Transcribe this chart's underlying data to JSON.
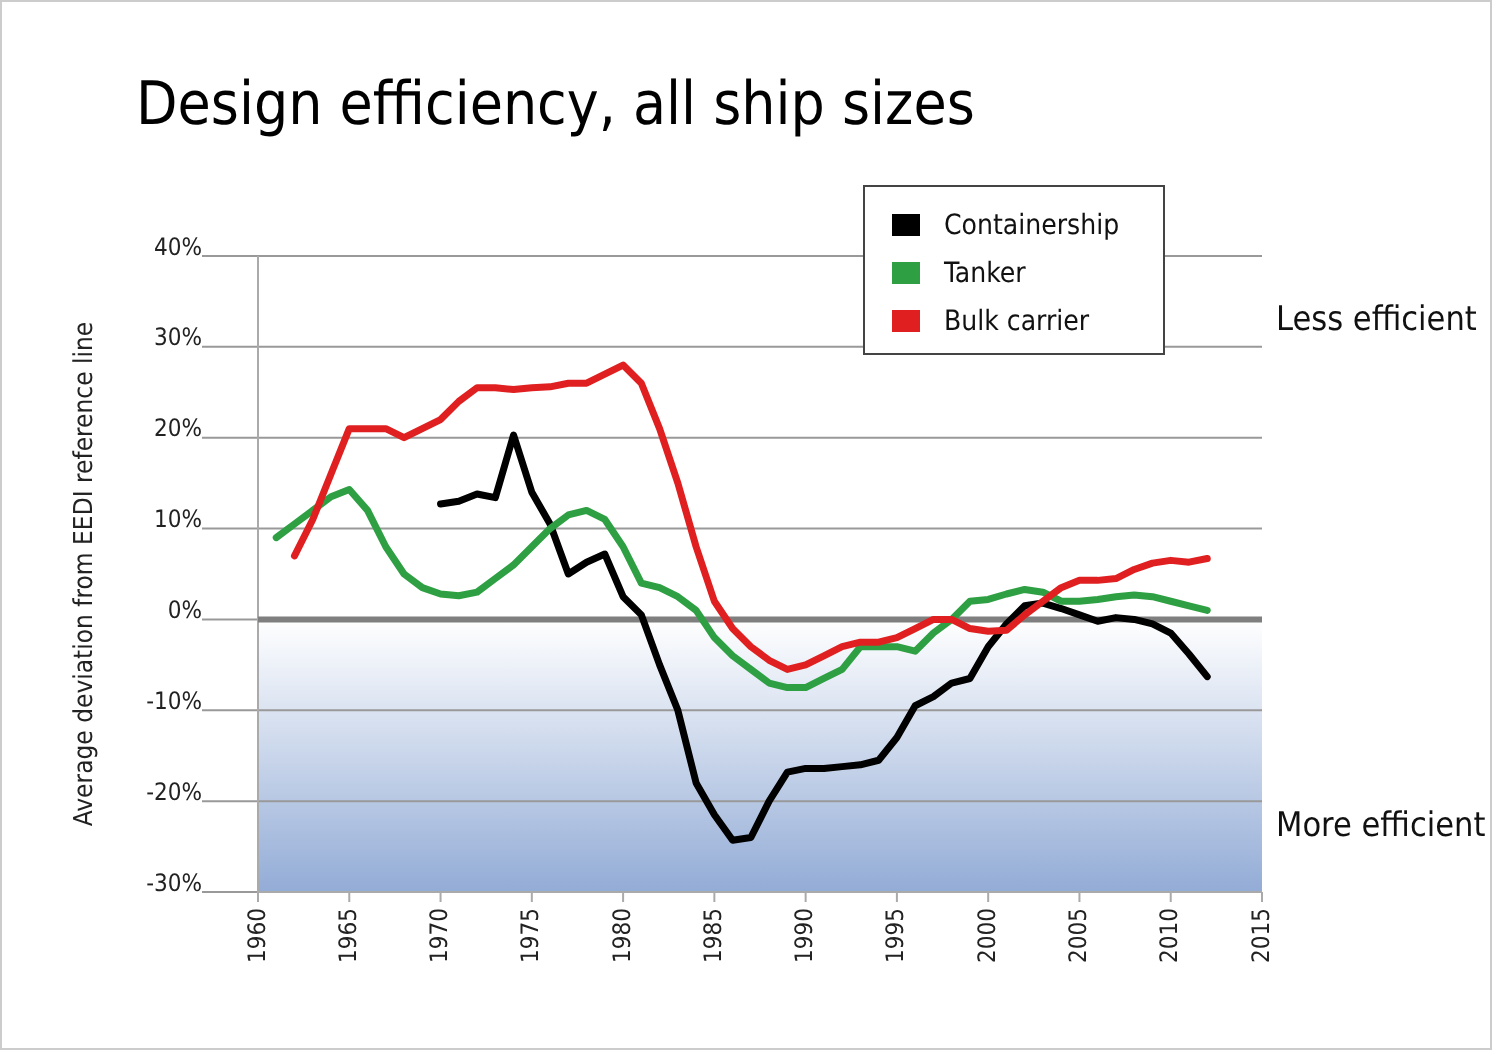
{
  "chart_data": {
    "type": "line",
    "title": "Design efficiency, all ship sizes",
    "ylabel": "Average deviation from EEDI reference line",
    "annotations": [
      "Less efficient",
      "More efficient"
    ],
    "xlim": [
      1960,
      2015
    ],
    "xticks": [
      1960,
      1965,
      1970,
      1975,
      1980,
      1985,
      1990,
      1995,
      2000,
      2005,
      2010,
      2015
    ],
    "ylim": [
      -30,
      40
    ],
    "yticks": [
      {
        "value": -30,
        "label": "-30%"
      },
      {
        "value": -20,
        "label": "-20%"
      },
      {
        "value": -10,
        "label": "-10%"
      },
      {
        "value": 0,
        "label": "0%"
      },
      {
        "value": 10,
        "label": "10%"
      },
      {
        "value": 20,
        "label": "20%"
      },
      {
        "value": 30,
        "label": "30%"
      },
      {
        "value": 40,
        "label": "40%"
      }
    ],
    "grid": "y",
    "legend": "top right",
    "ref_lines": [
      {
        "axis": "y",
        "value": 0,
        "color": "#7f7f7f"
      }
    ],
    "bands": [
      {
        "axis": "y",
        "from": -30,
        "to": 0,
        "color": "#93acd6"
      }
    ],
    "series": [
      {
        "name": "Containership",
        "color": "#000000",
        "x": [
          1970,
          1971,
          1972,
          1973,
          1974,
          1975,
          1976,
          1977,
          1978,
          1979,
          1980,
          1981,
          1982,
          1983,
          1984,
          1985,
          1986,
          1987,
          1988,
          1989,
          1990,
          1991,
          1992,
          1993,
          1994,
          1995,
          1996,
          1997,
          1998,
          1999,
          2000,
          2001,
          2002,
          2003,
          2004,
          2005,
          2006,
          2007,
          2008,
          2009,
          2010,
          2011,
          2012
        ],
        "values": [
          12.7,
          13,
          13.8,
          13.4,
          20.3,
          14,
          10.5,
          5,
          6.3,
          7.2,
          2.5,
          0.5,
          -5,
          -10,
          -18,
          -21.5,
          -24.3,
          -24,
          -20,
          -16.8,
          -16.4,
          -16.4,
          -16.2,
          -16,
          -15.5,
          -13,
          -9.5,
          -8.5,
          -7,
          -6.5,
          -3,
          -0.5,
          1.5,
          1.8,
          1.2,
          0.5,
          -0.2,
          0.2,
          0,
          -0.5,
          -1.5,
          -3.8,
          -6.3
        ]
      },
      {
        "name": "Tanker",
        "color": "#2ea043",
        "x": [
          1961,
          1962,
          1963,
          1964,
          1965,
          1966,
          1967,
          1968,
          1969,
          1970,
          1971,
          1972,
          1973,
          1974,
          1975,
          1976,
          1977,
          1978,
          1979,
          1980,
          1981,
          1982,
          1983,
          1984,
          1985,
          1986,
          1987,
          1988,
          1989,
          1990,
          1991,
          1992,
          1993,
          1994,
          1995,
          1996,
          1997,
          1998,
          1999,
          2000,
          2001,
          2002,
          2003,
          2004,
          2005,
          2006,
          2007,
          2008,
          2009,
          2010,
          2011,
          2012
        ],
        "values": [
          9,
          10.5,
          12,
          13.5,
          14.3,
          12,
          8,
          5,
          3.5,
          2.8,
          2.6,
          3,
          4.5,
          6,
          8,
          10,
          11.5,
          12,
          11,
          8,
          4,
          3.5,
          2.5,
          1,
          -2,
          -4,
          -5.5,
          -7,
          -7.5,
          -7.5,
          -6.5,
          -5.5,
          -3,
          -3,
          -3,
          -3.5,
          -1.5,
          0,
          2,
          2.2,
          2.8,
          3.3,
          3,
          2,
          2,
          2.2,
          2.5,
          2.7,
          2.5,
          2,
          1.5,
          1
        ]
      },
      {
        "name": "Bulk carrier",
        "color": "#e02020",
        "x": [
          1962,
          1963,
          1964,
          1965,
          1966,
          1967,
          1968,
          1969,
          1970,
          1971,
          1972,
          1973,
          1974,
          1975,
          1976,
          1977,
          1978,
          1979,
          1980,
          1981,
          1982,
          1983,
          1984,
          1985,
          1986,
          1987,
          1988,
          1989,
          1990,
          1991,
          1992,
          1993,
          1994,
          1995,
          1996,
          1997,
          1998,
          1999,
          2000,
          2001,
          2002,
          2003,
          2004,
          2005,
          2006,
          2007,
          2008,
          2009,
          2010,
          2011,
          2012
        ],
        "values": [
          7,
          11,
          16,
          21,
          21,
          21,
          20,
          21,
          22,
          24,
          25.5,
          25.5,
          25.3,
          25.5,
          25.6,
          26,
          26,
          27,
          28,
          26,
          21,
          15,
          8,
          2,
          -1,
          -3,
          -4.5,
          -5.5,
          -5,
          -4,
          -3,
          -2.5,
          -2.5,
          -2,
          -1,
          0,
          0,
          -1,
          -1.3,
          -1.2,
          0.5,
          2,
          3.5,
          4.3,
          4.3,
          4.5,
          5.5,
          6.2,
          6.5,
          6.3,
          6.7
        ]
      }
    ]
  }
}
